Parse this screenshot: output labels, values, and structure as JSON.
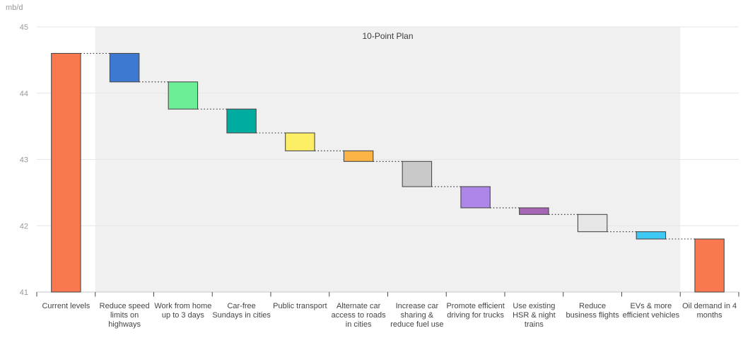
{
  "chart_data": {
    "type": "bar",
    "subtype": "waterfall",
    "title": "",
    "unit_label": "mb/d",
    "ylim": [
      41,
      45
    ],
    "yticks": [
      45,
      44,
      43,
      42,
      41
    ],
    "grid": true,
    "band": {
      "label": "10-Point Plan",
      "start_index": 1,
      "end_index": 11,
      "color": "#f0f0f1"
    },
    "categories": [
      "Current levels",
      "Reduce speed limits on highways",
      "Work from home up to 3 days",
      "Car-free Sundays in cities",
      "Public transport",
      "Alternate car access to roads in cities",
      "Increase car sharing & reduce fuel use",
      "Promote efficient driving for trucks",
      "Use existing HSR & night trains",
      "Reduce business flights",
      "EVs & more efficient vehicles",
      "Oil demand in 4 months"
    ],
    "bars": [
      {
        "label": "Current levels",
        "color": "#FA7850",
        "from": 41.0,
        "to": 44.6,
        "kind": "total"
      },
      {
        "label": "Reduce speed limits on highways",
        "color": "#3D79D0",
        "from": 44.6,
        "to": 44.17,
        "kind": "decrease"
      },
      {
        "label": "Work from home up to 3 days",
        "color": "#6BEE95",
        "from": 44.17,
        "to": 43.76,
        "kind": "decrease"
      },
      {
        "label": "Car-free Sundays in cities",
        "color": "#00ABA0",
        "from": 43.76,
        "to": 43.4,
        "kind": "decrease"
      },
      {
        "label": "Public transport",
        "color": "#FCEF65",
        "from": 43.4,
        "to": 43.13,
        "kind": "decrease"
      },
      {
        "label": "Alternate car access to roads in cities",
        "color": "#FBB445",
        "from": 43.13,
        "to": 42.97,
        "kind": "decrease"
      },
      {
        "label": "Increase car sharing & reduce fuel use",
        "color": "#C9C9C9",
        "from": 42.97,
        "to": 42.59,
        "kind": "decrease"
      },
      {
        "label": "Promote efficient driving for trucks",
        "color": "#AE85E9",
        "from": 42.59,
        "to": 42.27,
        "kind": "decrease"
      },
      {
        "label": "Use existing HSR & night trains",
        "color": "#A665B5",
        "from": 42.27,
        "to": 42.17,
        "kind": "decrease"
      },
      {
        "label": "Reduce business flights",
        "color": "#E6E6E6",
        "from": 42.17,
        "to": 41.91,
        "kind": "decrease"
      },
      {
        "label": "EVs & more efficient vehicles",
        "color": "#3DC9F3",
        "from": 41.91,
        "to": 41.8,
        "kind": "decrease"
      },
      {
        "label": "Oil demand in 4 months",
        "color": "#FA7850",
        "from": 41.0,
        "to": 41.8,
        "kind": "total"
      }
    ],
    "colors": {
      "grid": "#e6e6e6",
      "axis_line": "#c8c8c8",
      "tick_mark": "#4a4a4a",
      "bar_border": "#4a4a4a",
      "connector": "#2e2e2e",
      "y_tick_text": "#98989b"
    }
  }
}
